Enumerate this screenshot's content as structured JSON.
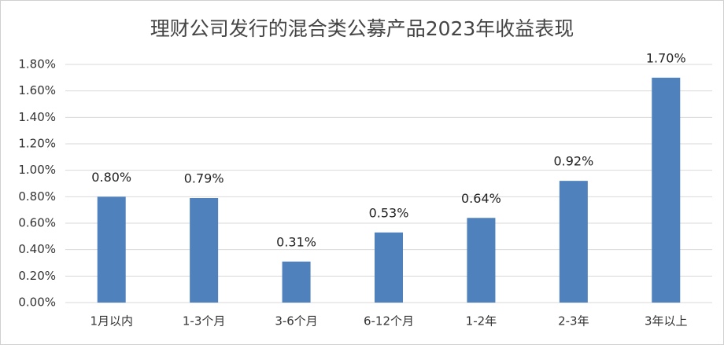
{
  "chart_data": {
    "type": "bar",
    "title": "理财公司发行的混合类公募产品2023年收益表现",
    "categories": [
      "1月以内",
      "1-3个月",
      "3-6个月",
      "6-12个月",
      "1-2年",
      "2-3年",
      "3年以上"
    ],
    "values": [
      0.8,
      0.79,
      0.31,
      0.53,
      0.64,
      0.92,
      1.7
    ],
    "value_labels": [
      "0.80%",
      "0.79%",
      "0.31%",
      "0.53%",
      "0.64%",
      "0.92%",
      "1.70%"
    ],
    "color": "#4f81bd",
    "ylim": [
      0,
      1.8
    ],
    "yticks": [
      {
        "value": 0,
        "label": "0.00%"
      },
      {
        "value": 0.2,
        "label": "0.20%"
      },
      {
        "value": 0.4,
        "label": "0.40%"
      },
      {
        "value": 0.6,
        "label": "0.60%"
      },
      {
        "value": 0.8,
        "label": "0.80%"
      },
      {
        "value": 1.0,
        "label": "1.00%"
      },
      {
        "value": 1.2,
        "label": "1.20%"
      },
      {
        "value": 1.4,
        "label": "1.40%"
      },
      {
        "value": 1.6,
        "label": "1.60%"
      },
      {
        "value": 1.8,
        "label": "1.80%"
      }
    ],
    "grid": true
  }
}
